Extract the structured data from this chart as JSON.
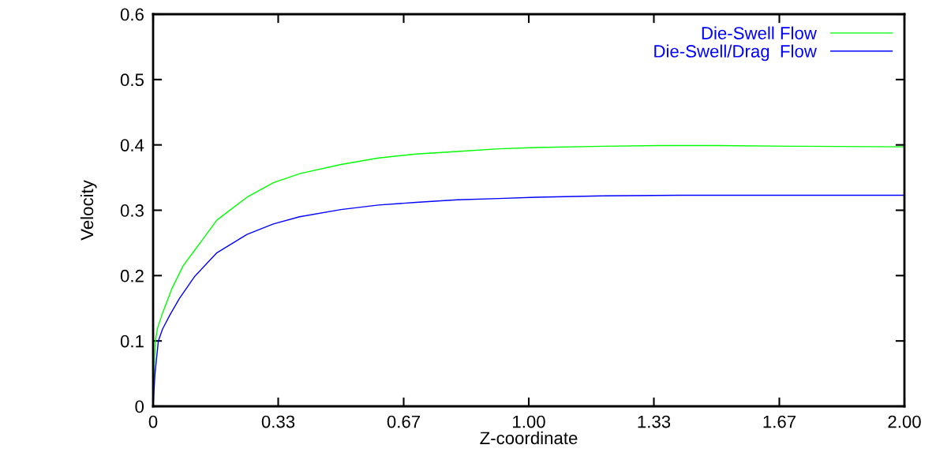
{
  "chart_data": {
    "type": "line",
    "xlabel": "Z-coordinate",
    "ylabel": "Velocity",
    "xlim": [
      0,
      2
    ],
    "ylim": [
      0,
      0.6
    ],
    "xticks": [
      0,
      {
        "value": 0.333,
        "label": "0.33"
      },
      {
        "value": 0.667,
        "label": "0.67"
      },
      {
        "value": 1,
        "label": "1.00"
      },
      {
        "value": 1.333,
        "label": "1.33"
      },
      {
        "value": 1.667,
        "label": "1.67"
      },
      {
        "value": 2,
        "label": "2.00"
      }
    ],
    "yticks": [
      0,
      0.1,
      0.2,
      0.3,
      0.4,
      0.5,
      0.6
    ],
    "grid": false,
    "legend": "top right",
    "marker": "none",
    "line_style": "solid",
    "series": [
      {
        "name": "Die-Swell Flow",
        "color": "#00ff00",
        "x": [
          0,
          0.003,
          0.006,
          0.012,
          0.023,
          0.05,
          0.08,
          0.111,
          0.17,
          0.25,
          0.32,
          0.39,
          0.5,
          0.6,
          0.7,
          0.81,
          0.92,
          1.02,
          1.2,
          1.35,
          1.5,
          1.7,
          2.0
        ],
        "values": [
          0,
          0.06,
          0.1,
          0.12,
          0.139,
          0.18,
          0.215,
          0.239,
          0.285,
          0.32,
          0.342,
          0.356,
          0.37,
          0.38,
          0.386,
          0.39,
          0.394,
          0.396,
          0.398,
          0.399,
          0.399,
          0.398,
          0.397
        ]
      },
      {
        "name": "Die-Swell/Drag  Flow",
        "color": "#0000ff",
        "x": [
          0,
          0.005,
          0.014,
          0.025,
          0.044,
          0.07,
          0.111,
          0.17,
          0.25,
          0.32,
          0.39,
          0.5,
          0.6,
          0.7,
          0.81,
          0.92,
          1.02,
          1.2,
          1.4,
          1.7,
          2.0
        ],
        "values": [
          0,
          0.05,
          0.1,
          0.118,
          0.139,
          0.165,
          0.199,
          0.235,
          0.263,
          0.279,
          0.29,
          0.301,
          0.308,
          0.312,
          0.316,
          0.318,
          0.32,
          0.322,
          0.323,
          0.323,
          0.323
        ]
      }
    ]
  }
}
